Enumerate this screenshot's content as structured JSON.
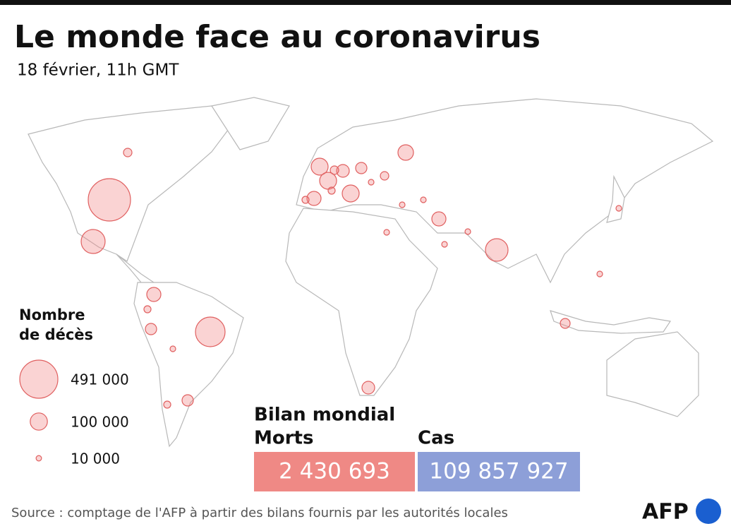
{
  "header": {
    "title": "Le monde face au coronavirus",
    "subtitle": "18 février, 11h GMT"
  },
  "legend": {
    "title_line1": "Nombre",
    "title_line2": "de décès",
    "entries": [
      {
        "value": 491000,
        "label": "491 000"
      },
      {
        "value": 100000,
        "label": "100 000"
      },
      {
        "value": 10000,
        "label": "10 000"
      }
    ]
  },
  "summary": {
    "title": "Bilan mondial",
    "deaths_label": "Morts",
    "deaths_value": "2 430 693",
    "cases_label": "Cas",
    "cases_value": "109 857 927"
  },
  "footer": {
    "source": "Source : comptage de l'AFP à partir des bilans fournis par les autorités locales",
    "logo": "AFP"
  }
}
